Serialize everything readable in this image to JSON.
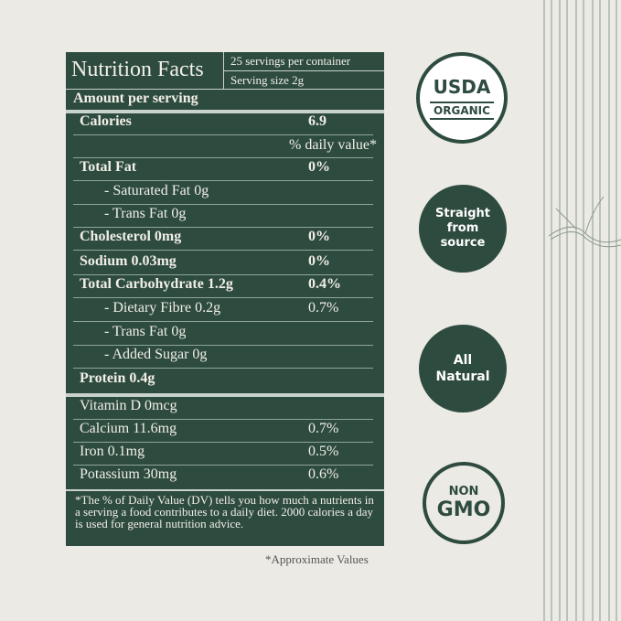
{
  "panel": {
    "title": "Nutrition Facts",
    "servings": "25 servings per container",
    "serving_size": "Serving size 2g",
    "amount_label": "Amount per serving",
    "daily_value_header": "% daily value*",
    "rows": [
      [
        "Calories",
        "6.9"
      ],
      [
        "Total Fat",
        "0%"
      ],
      [
        "- Saturated Fat 0g"
      ],
      [
        "- Trans Fat 0g"
      ],
      [
        "Cholesterol 0mg",
        "0%"
      ],
      [
        "Sodium 0.03mg",
        "0%"
      ],
      [
        "Total Carbohydrate 1.2g",
        "0.4%"
      ],
      [
        "- Dietary Fibre 0.2g",
        "0.7%"
      ],
      [
        "- Trans Fat 0g"
      ],
      [
        "- Added Sugar 0g"
      ],
      [
        "Protein 0.4g"
      ]
    ],
    "vitamins": [
      [
        "Vitamin D 0mcg"
      ],
      [
        "Calcium 11.6mg",
        "0.7%"
      ],
      [
        "Iron 0.1mg",
        "0.5%"
      ],
      [
        "Potassium 30mg",
        "0.6%"
      ]
    ],
    "footnote": "*The % of Daily Value (DV) tells you how much a nutrients in a serving a food contributes to a daily diet. 2000 calories a day is used for general nutrition advice."
  },
  "approximate_note": "*Approximate Values",
  "badges": {
    "usda": "USDA",
    "organic": "ORGANIC",
    "straight": "Straight from source",
    "natural": "All Natural",
    "non": "NON",
    "gmo": "GMO"
  }
}
